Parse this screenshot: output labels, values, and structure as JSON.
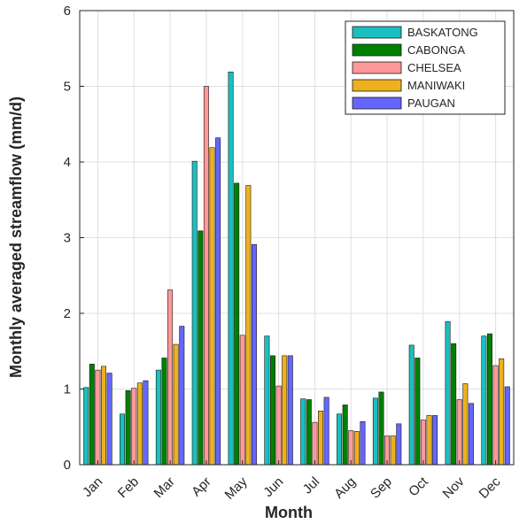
{
  "chart_data": {
    "type": "bar",
    "xlabel": "Month",
    "ylabel": "Monthly averaged streamflow (mm/d)",
    "ylim": [
      0,
      6
    ],
    "yticks": [
      0,
      1,
      2,
      3,
      4,
      5,
      6
    ],
    "grid": true,
    "legend_position": "top-right",
    "categories": [
      "Jan",
      "Feb",
      "Mar",
      "Apr",
      "May",
      "Jun",
      "Jul",
      "Aug",
      "Sep",
      "Oct",
      "Nov",
      "Dec"
    ],
    "series": [
      {
        "name": "BASKATONG",
        "color": "#1ABFBF",
        "values": [
          1.02,
          0.67,
          1.25,
          4.01,
          5.19,
          1.7,
          0.87,
          0.67,
          0.88,
          1.58,
          1.89,
          1.7
        ]
      },
      {
        "name": "CABONGA",
        "color": "#008000",
        "values": [
          1.33,
          0.98,
          1.41,
          3.09,
          3.72,
          1.44,
          0.86,
          0.79,
          0.96,
          1.41,
          1.6,
          1.73
        ]
      },
      {
        "name": "CHELSEA",
        "color": "#FF9999",
        "values": [
          1.25,
          1.01,
          2.31,
          5.0,
          1.71,
          1.04,
          0.56,
          0.45,
          0.38,
          0.59,
          0.86,
          1.31
        ]
      },
      {
        "name": "MANIWAKI",
        "color": "#EDB120",
        "values": [
          1.3,
          1.08,
          1.59,
          4.19,
          3.69,
          1.44,
          0.71,
          0.44,
          0.38,
          0.65,
          1.07,
          1.4
        ]
      },
      {
        "name": "PAUGAN",
        "color": "#6666FF",
        "values": [
          1.21,
          1.11,
          1.83,
          4.32,
          2.91,
          1.44,
          0.89,
          0.57,
          0.54,
          0.65,
          0.81,
          1.03
        ]
      }
    ]
  }
}
